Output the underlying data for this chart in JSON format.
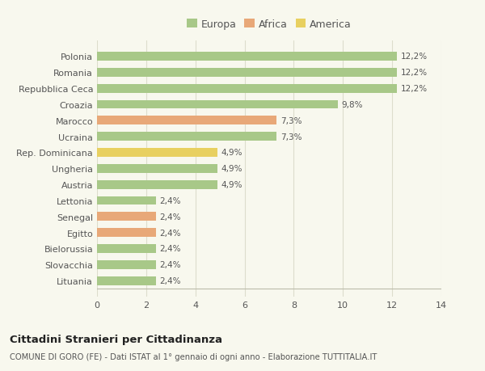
{
  "categories": [
    "Polonia",
    "Romania",
    "Repubblica Ceca",
    "Croazia",
    "Marocco",
    "Ucraina",
    "Rep. Dominicana",
    "Ungheria",
    "Austria",
    "Lettonia",
    "Senegal",
    "Egitto",
    "Bielorussia",
    "Slovacchia",
    "Lituania"
  ],
  "values": [
    12.2,
    12.2,
    12.2,
    9.8,
    7.3,
    7.3,
    4.9,
    4.9,
    4.9,
    2.4,
    2.4,
    2.4,
    2.4,
    2.4,
    2.4
  ],
  "colors": [
    "#a8c888",
    "#a8c888",
    "#a8c888",
    "#a8c888",
    "#e8a878",
    "#a8c888",
    "#e8d060",
    "#a8c888",
    "#a8c888",
    "#a8c888",
    "#e8a878",
    "#e8a878",
    "#a8c888",
    "#a8c888",
    "#a8c888"
  ],
  "labels": [
    "12,2%",
    "12,2%",
    "12,2%",
    "9,8%",
    "7,3%",
    "7,3%",
    "4,9%",
    "4,9%",
    "4,9%",
    "2,4%",
    "2,4%",
    "2,4%",
    "2,4%",
    "2,4%",
    "2,4%"
  ],
  "legend_labels": [
    "Europa",
    "Africa",
    "America"
  ],
  "legend_colors": [
    "#a8c888",
    "#e8a878",
    "#e8d060"
  ],
  "xlim": [
    0,
    14
  ],
  "xticks": [
    0,
    2,
    4,
    6,
    8,
    10,
    12,
    14
  ],
  "title1": "Cittadini Stranieri per Cittadinanza",
  "title2": "COMUNE DI GORO (FE) - Dati ISTAT al 1° gennaio di ogni anno - Elaborazione TUTTITALIA.IT",
  "background_color": "#f8f8ee",
  "grid_color": "#ddddcc"
}
